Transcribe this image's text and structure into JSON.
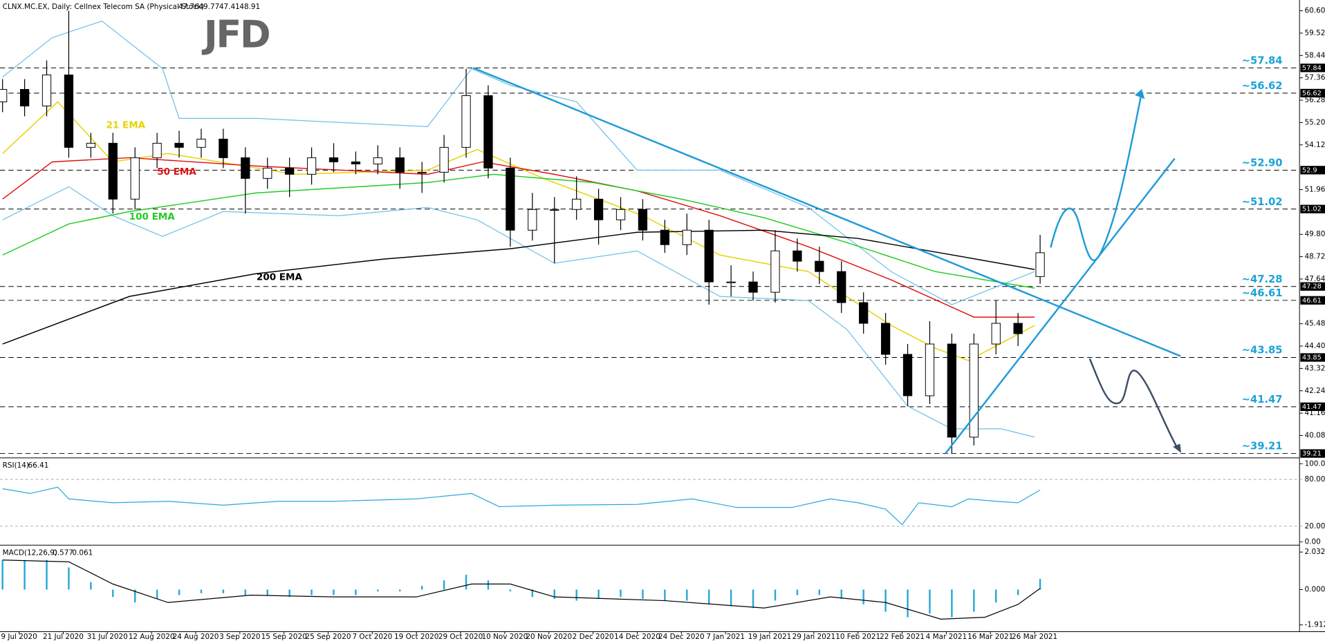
{
  "logo": "JFD",
  "chart_data": {
    "type": "candlestick",
    "title": "CLNX.MC.EX, Daily:  Cellnex Telecom SA (Physical Stock)",
    "xlim": [
      -0.46,
      235
    ],
    "xticks": [
      {
        "value": 3,
        "label": "9 Jul 2020"
      },
      {
        "value": 11,
        "label": "21 Jul 2020"
      },
      {
        "value": 19,
        "label": "31 Jul 2020"
      },
      {
        "value": 27,
        "label": "12 Aug 2020"
      },
      {
        "value": 35,
        "label": "24 Aug 2020"
      },
      {
        "value": 43,
        "label": "3 Sep 2020"
      },
      {
        "value": 51,
        "label": "15 Sep 2020"
      },
      {
        "value": 59,
        "label": "25 Sep 2020"
      },
      {
        "value": 67,
        "label": "7 Oct 2020"
      },
      {
        "value": 75,
        "label": "19 Oct 2020"
      },
      {
        "value": 83,
        "label": "29 Oct 2020"
      },
      {
        "value": 91,
        "label": "10 Nov 2020"
      },
      {
        "value": 99,
        "label": "20 Nov 2020"
      },
      {
        "value": 107,
        "label": "2 Dec 2020"
      },
      {
        "value": 115,
        "label": "14 Dec 2020"
      },
      {
        "value": 123,
        "label": "24 Dec 2020"
      },
      {
        "value": 131,
        "label": "7 Jan 2021"
      },
      {
        "value": 139,
        "label": "19 Jan 2021"
      },
      {
        "value": 147,
        "label": "29 Jan 2021"
      },
      {
        "value": 155,
        "label": "10 Feb 2021"
      },
      {
        "value": 163,
        "label": "22 Feb 2021"
      },
      {
        "value": 171,
        "label": "4 Mar 2021"
      },
      {
        "value": 179,
        "label": "16 Mar 2021"
      },
      {
        "value": 187,
        "label": "26 Mar 2021"
      }
    ],
    "ylim": [
      39.0,
      61.12
    ],
    "yticks": [
      {
        "value": 60.6,
        "label": "60.60"
      },
      59.52,
      58.44,
      57.36,
      56.28,
      {
        "value": 55.2,
        "label": "55.20"
      },
      54.12,
      51.96,
      {
        "value": 49.8,
        "label": "49.80"
      },
      48.72,
      47.64,
      45.48,
      {
        "value": 44.4,
        "label": "44.40"
      },
      43.32,
      42.24,
      41.16,
      40.08
    ],
    "candles": [
      {
        "x": 0,
        "o": 56.2,
        "h": 57.3,
        "l": 55.7,
        "c": 56.8
      },
      {
        "x": 4,
        "o": 56.8,
        "h": 57.3,
        "l": 55.5,
        "c": 56.0
      },
      {
        "x": 8,
        "o": 56.0,
        "h": 58.2,
        "l": 55.5,
        "c": 57.5
      },
      {
        "x": 12,
        "o": 57.5,
        "h": 60.6,
        "l": 53.5,
        "c": 54.0
      },
      {
        "x": 16,
        "o": 54.0,
        "h": 54.7,
        "l": 53.5,
        "c": 54.2
      },
      {
        "x": 20,
        "o": 54.2,
        "h": 54.7,
        "l": 50.8,
        "c": 51.5
      },
      {
        "x": 24,
        "o": 51.5,
        "h": 54.0,
        "l": 51.0,
        "c": 53.5
      },
      {
        "x": 28,
        "o": 53.5,
        "h": 54.7,
        "l": 53.0,
        "c": 54.2
      },
      {
        "x": 32,
        "o": 54.2,
        "h": 54.8,
        "l": 53.5,
        "c": 54.0
      },
      {
        "x": 36,
        "o": 54.0,
        "h": 54.9,
        "l": 53.5,
        "c": 54.4
      },
      {
        "x": 40,
        "o": 54.4,
        "h": 54.9,
        "l": 53.0,
        "c": 53.5
      },
      {
        "x": 44,
        "o": 53.5,
        "h": 54.0,
        "l": 50.8,
        "c": 52.5
      },
      {
        "x": 48,
        "o": 52.5,
        "h": 53.5,
        "l": 52.0,
        "c": 53.0
      },
      {
        "x": 52,
        "o": 53.0,
        "h": 53.5,
        "l": 51.6,
        "c": 52.7
      },
      {
        "x": 56,
        "o": 52.7,
        "h": 54.0,
        "l": 52.2,
        "c": 53.5
      },
      {
        "x": 60,
        "o": 53.5,
        "h": 54.2,
        "l": 52.8,
        "c": 53.3
      },
      {
        "x": 64,
        "o": 53.3,
        "h": 53.8,
        "l": 52.7,
        "c": 53.2
      },
      {
        "x": 68,
        "o": 53.2,
        "h": 54.1,
        "l": 52.7,
        "c": 53.5
      },
      {
        "x": 72,
        "o": 53.5,
        "h": 54.0,
        "l": 52.0,
        "c": 52.8
      },
      {
        "x": 76,
        "o": 52.8,
        "h": 53.3,
        "l": 51.8,
        "c": 52.8
      },
      {
        "x": 80,
        "o": 52.8,
        "h": 54.6,
        "l": 52.3,
        "c": 54.0
      },
      {
        "x": 84,
        "o": 54.0,
        "h": 57.8,
        "l": 53.5,
        "c": 56.5
      },
      {
        "x": 88,
        "o": 56.5,
        "h": 57.0,
        "l": 52.5,
        "c": 53.0
      },
      {
        "x": 92,
        "o": 53.0,
        "h": 53.5,
        "l": 49.2,
        "c": 50.0
      },
      {
        "x": 96,
        "o": 50.0,
        "h": 51.8,
        "l": 49.5,
        "c": 51.0
      },
      {
        "x": 100,
        "o": 51.0,
        "h": 51.6,
        "l": 48.4,
        "c": 51.0
      },
      {
        "x": 104,
        "o": 51.0,
        "h": 52.6,
        "l": 50.5,
        "c": 51.5
      },
      {
        "x": 108,
        "o": 51.5,
        "h": 52.0,
        "l": 49.3,
        "c": 50.5
      },
      {
        "x": 112,
        "o": 50.5,
        "h": 51.6,
        "l": 50.0,
        "c": 51.0
      },
      {
        "x": 116,
        "o": 51.0,
        "h": 51.5,
        "l": 49.5,
        "c": 50.0
      },
      {
        "x": 120,
        "o": 50.0,
        "h": 50.5,
        "l": 48.9,
        "c": 49.3
      },
      {
        "x": 124,
        "o": 49.3,
        "h": 50.8,
        "l": 48.8,
        "c": 50.0
      },
      {
        "x": 128,
        "o": 50.0,
        "h": 50.5,
        "l": 46.4,
        "c": 47.5
      },
      {
        "x": 132,
        "o": 47.5,
        "h": 48.3,
        "l": 46.8,
        "c": 47.5
      },
      {
        "x": 136,
        "o": 47.5,
        "h": 48.0,
        "l": 46.6,
        "c": 47.0
      },
      {
        "x": 140,
        "o": 47.0,
        "h": 50.0,
        "l": 46.5,
        "c": 49.0
      },
      {
        "x": 144,
        "o": 49.0,
        "h": 49.6,
        "l": 48.0,
        "c": 48.5
      },
      {
        "x": 148,
        "o": 48.5,
        "h": 49.2,
        "l": 47.4,
        "c": 48.0
      },
      {
        "x": 152,
        "o": 48.0,
        "h": 48.5,
        "l": 46.0,
        "c": 46.5
      },
      {
        "x": 156,
        "o": 46.5,
        "h": 47.0,
        "l": 45.0,
        "c": 45.5
      },
      {
        "x": 160,
        "o": 45.5,
        "h": 46.0,
        "l": 43.5,
        "c": 44.0
      },
      {
        "x": 164,
        "o": 44.0,
        "h": 44.5,
        "l": 41.5,
        "c": 42.0
      },
      {
        "x": 168,
        "o": 42.0,
        "h": 45.6,
        "l": 41.6,
        "c": 44.5
      },
      {
        "x": 172,
        "o": 44.5,
        "h": 45.0,
        "l": 39.21,
        "c": 40.0
      },
      {
        "x": 176,
        "o": 40.0,
        "h": 45.0,
        "l": 39.6,
        "c": 44.5
      },
      {
        "x": 180,
        "o": 44.5,
        "h": 46.6,
        "l": 44.0,
        "c": 45.5
      },
      {
        "x": 184,
        "o": 45.5,
        "h": 46.0,
        "l": 44.4,
        "c": 45.0
      },
      {
        "x": 188,
        "o": 47.76,
        "h": 49.77,
        "l": 47.41,
        "c": 48.91
      }
    ],
    "lines": [
      {
        "name": "21 EMA",
        "color": "#e8d200",
        "x": [
          0,
          10,
          20,
          30,
          53,
          77,
          86,
          98,
          116,
          130,
          146,
          161,
          169,
          175,
          187
        ],
        "values": [
          53.7,
          56.2,
          53.3,
          53.7,
          52.7,
          52.9,
          53.9,
          52.5,
          50.7,
          48.8,
          48.0,
          45.4,
          44.3,
          43.7,
          45.4
        ]
      },
      {
        "name": "50 EMA",
        "color": "#e01010",
        "x": [
          0,
          9,
          23,
          46,
          77,
          87,
          100,
          115,
          130,
          146,
          161,
          176,
          187
        ],
        "values": [
          51.5,
          53.3,
          53.5,
          53.1,
          52.7,
          53.3,
          52.7,
          51.9,
          50.7,
          49.2,
          47.6,
          45.8,
          45.8
        ]
      },
      {
        "name": "100 EMA",
        "color": "#22cc22",
        "x": [
          0,
          12,
          23,
          46,
          77,
          89,
          107,
          123,
          138,
          153,
          169,
          187
        ],
        "values": [
          48.8,
          50.3,
          50.9,
          51.8,
          52.3,
          52.7,
          52.3,
          51.5,
          50.6,
          49.4,
          48.0,
          47.2
        ]
      },
      {
        "name": "200 EMA",
        "color": "#000000",
        "x": [
          0,
          23,
          46,
          69,
          92,
          115,
          138,
          155,
          170,
          187
        ],
        "values": [
          44.5,
          46.8,
          47.9,
          48.6,
          49.1,
          49.9,
          50.0,
          49.6,
          48.9,
          48.1
        ]
      }
    ],
    "bands": {
      "color": "#6fbfe8",
      "upper": {
        "x": [
          0,
          9,
          18,
          29,
          32,
          46,
          77,
          85,
          92,
          104,
          115,
          130,
          146,
          161,
          172,
          187
        ],
        "values": [
          57.4,
          59.3,
          60.1,
          57.8,
          55.4,
          55.4,
          55.0,
          57.8,
          57.0,
          56.2,
          52.9,
          52.9,
          51.1,
          48.0,
          46.4,
          48.0
        ]
      },
      "lower": {
        "x": [
          0,
          12,
          20,
          29,
          40,
          61,
          77,
          86,
          100,
          115,
          130,
          146,
          153,
          164,
          172,
          181,
          187
        ],
        "values": [
          50.5,
          52.1,
          50.7,
          49.7,
          50.9,
          50.7,
          51.1,
          50.5,
          48.4,
          49.0,
          46.8,
          46.6,
          45.2,
          41.5,
          40.4,
          40.4,
          40.0
        ]
      }
    },
    "levels": [
      {
        "value": 57.84,
        "label": "~57.84"
      },
      {
        "value": 56.62,
        "label": "~56.62"
      },
      {
        "value": 52.9,
        "label": "~52.90"
      },
      {
        "value": 51.02,
        "label": "~51.02"
      },
      {
        "value": 47.28,
        "label": "~47.28"
      },
      {
        "value": 46.61,
        "label": "~46.61"
      },
      {
        "value": 43.85,
        "label": "~43.85"
      },
      {
        "value": 41.47,
        "label": "~41.47"
      },
      {
        "value": 39.21,
        "label": "~39.21"
      }
    ],
    "rsi": {
      "title": "RSI(14)",
      "color": "#29a8d8",
      "ylim": [
        -4.3,
        106.5
      ],
      "yticks": [
        {
          "value": 100,
          "label": "100.00"
        },
        {
          "value": 80,
          "label": "80.00"
        },
        {
          "value": 20,
          "label": "20.00"
        },
        {
          "value": 0,
          "label": "0.00"
        }
      ],
      "x": [
        0,
        5,
        10,
        12,
        20,
        30,
        40,
        50,
        60,
        75,
        85,
        90,
        100,
        115,
        125,
        133,
        143,
        150,
        155,
        160,
        163,
        166,
        172,
        175,
        180,
        184,
        188
      ],
      "values": [
        68,
        62,
        70,
        55,
        50,
        52,
        47,
        52,
        52,
        55,
        62,
        45,
        47,
        48,
        55,
        44,
        44,
        55,
        50,
        42,
        22,
        50,
        45,
        55,
        52,
        50,
        66.41
      ]
    },
    "macd": {
      "title": "MACD(12,26,9)",
      "ylim": [
        -2.28,
        2.31
      ],
      "yticks": [
        2.032,
        {
          "value": 0,
          "label": "0.000"
        },
        -1.912
      ],
      "histogram": {
        "color": "#29a8d8",
        "x": [
          0,
          4,
          8,
          12,
          16,
          20,
          24,
          28,
          32,
          36,
          40,
          44,
          48,
          52,
          56,
          60,
          64,
          68,
          72,
          76,
          80,
          84,
          88,
          92,
          96,
          100,
          104,
          108,
          112,
          116,
          120,
          124,
          128,
          132,
          136,
          140,
          144,
          148,
          152,
          156,
          160,
          164,
          168,
          172,
          176,
          180,
          184,
          188
        ],
        "values": [
          1.6,
          1.6,
          1.6,
          1.2,
          0.4,
          -0.4,
          -0.7,
          -0.5,
          -0.3,
          -0.2,
          -0.2,
          -0.3,
          -0.3,
          -0.4,
          -0.3,
          -0.3,
          -0.3,
          -0.1,
          -0.1,
          0.2,
          0.5,
          0.8,
          0.5,
          -0.1,
          -0.4,
          -0.5,
          -0.6,
          -0.5,
          -0.4,
          -0.5,
          -0.6,
          -0.6,
          -0.8,
          -0.9,
          -1.0,
          -0.6,
          -0.3,
          -0.3,
          -0.5,
          -0.8,
          -1.2,
          -1.5,
          -1.3,
          -1.5,
          -1.2,
          -0.7,
          -0.3,
          0.577
        ]
      },
      "signal": {
        "color": "#000000",
        "x": [
          0,
          12,
          20,
          30,
          45,
          60,
          75,
          85,
          92,
          100,
          120,
          138,
          150,
          160,
          170,
          178,
          184,
          188
        ],
        "values": [
          1.6,
          1.5,
          0.3,
          -0.7,
          -0.3,
          -0.4,
          -0.4,
          0.3,
          0.3,
          -0.4,
          -0.6,
          -1.0,
          -0.4,
          -0.7,
          -1.6,
          -1.5,
          -0.8,
          0.061
        ]
      }
    }
  }
}
